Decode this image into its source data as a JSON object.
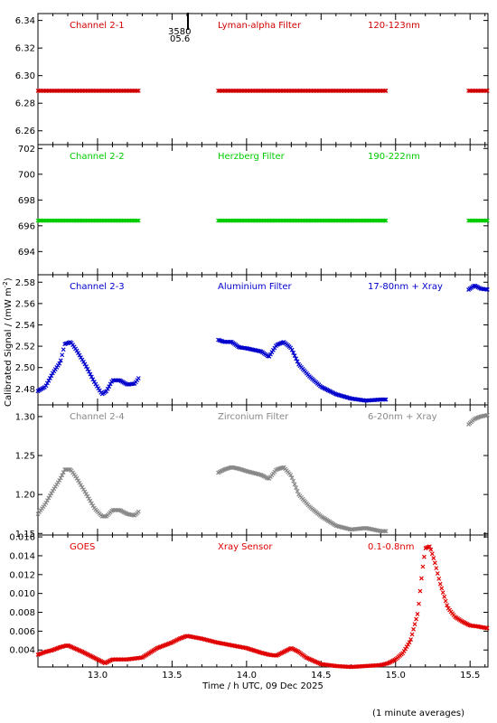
{
  "ylabel": "Calibrated Signal / (mW m",
  "ylabel_sup": "-2",
  "ylabel_close": ")",
  "xlabel": "Time / h UTC, 09 Dec 2025",
  "footnote": "(1 minute averages)",
  "marker_text_1": "3580",
  "marker_text_2": "05.6",
  "chart_data": [
    {
      "type": "scatter",
      "labels": [
        "Channel 2-1",
        "Lyman-alpha Filter",
        "120-123nm"
      ],
      "color": "#d00000",
      "ylim": [
        6.25,
        6.345
      ],
      "yticks": [
        6.26,
        6.28,
        6.3,
        6.32,
        6.34
      ],
      "ytick_labels": [
        "6.26",
        "6.28",
        "6.30",
        "6.32",
        "6.34"
      ],
      "segments": [
        {
          "x": [
            12.6,
            13.28
          ],
          "y": [
            6.289,
            6.289
          ]
        },
        {
          "x": [
            13.81,
            14.94
          ],
          "y": [
            6.289,
            6.289
          ]
        },
        {
          "x": [
            15.49,
            15.62
          ],
          "y": [
            6.289,
            6.289
          ]
        }
      ]
    },
    {
      "type": "scatter",
      "labels": [
        "Channel 2-2",
        "Herzberg Filter",
        "190-222nm"
      ],
      "color": "#00cc00",
      "ylim": [
        692.2,
        702.3
      ],
      "yticks": [
        694,
        696,
        698,
        700,
        702
      ],
      "ytick_labels": [
        "694",
        "696",
        "698",
        "700",
        "702"
      ],
      "segments": [
        {
          "x": [
            12.6,
            13.28
          ],
          "y": [
            696.4,
            696.4
          ]
        },
        {
          "x": [
            13.81,
            14.94
          ],
          "y": [
            696.4,
            696.4
          ]
        },
        {
          "x": [
            15.49,
            15.62
          ],
          "y": [
            696.4,
            696.4
          ]
        }
      ]
    },
    {
      "type": "scatter",
      "labels": [
        "Channel 2-3",
        "Aluminium Filter",
        "17-80nm + Xray"
      ],
      "color": "#0000cc",
      "ylim": [
        2.465,
        2.587
      ],
      "yticks": [
        2.48,
        2.5,
        2.52,
        2.54,
        2.56,
        2.58
      ],
      "ytick_labels": [
        "2.48",
        "2.50",
        "2.52",
        "2.54",
        "2.56",
        "2.58"
      ],
      "segments": [
        {
          "x": [
            12.6,
            12.65,
            12.7,
            12.75,
            12.78,
            12.82,
            12.86,
            12.92,
            12.98,
            13.03,
            13.06,
            13.1,
            13.15,
            13.2,
            13.25,
            13.28
          ],
          "y": [
            2.478,
            2.482,
            2.495,
            2.505,
            2.522,
            2.524,
            2.516,
            2.502,
            2.486,
            2.475,
            2.478,
            2.488,
            2.488,
            2.484,
            2.485,
            2.491
          ]
        },
        {
          "x": [
            13.81,
            13.85,
            13.9,
            13.95,
            14.0,
            14.1,
            14.15,
            14.2,
            14.25,
            14.3,
            14.35,
            14.42,
            14.5,
            14.6,
            14.7,
            14.8,
            14.9,
            14.94
          ],
          "y": [
            2.526,
            2.524,
            2.524,
            2.519,
            2.518,
            2.515,
            2.51,
            2.521,
            2.524,
            2.518,
            2.503,
            2.492,
            2.482,
            2.475,
            2.471,
            2.469,
            2.47,
            2.47
          ]
        },
        {
          "x": [
            15.49,
            15.53,
            15.57,
            15.62
          ],
          "y": [
            2.573,
            2.577,
            2.574,
            2.573
          ]
        }
      ]
    },
    {
      "type": "scatter",
      "labels": [
        "Channel 2-4",
        "Zirconium Filter",
        "6-20nm + Xray"
      ],
      "color": "#888888",
      "ylim": [
        1.148,
        1.315
      ],
      "yticks": [
        1.15,
        1.2,
        1.25,
        1.3
      ],
      "ytick_labels": [
        "1.15",
        "1.20",
        "1.25",
        "1.30"
      ],
      "segments": [
        {
          "x": [
            12.6,
            12.65,
            12.7,
            12.75,
            12.78,
            12.82,
            12.86,
            12.92,
            12.98,
            13.03,
            13.06,
            13.1,
            13.15,
            13.2,
            13.25,
            13.28
          ],
          "y": [
            1.175,
            1.188,
            1.205,
            1.22,
            1.232,
            1.232,
            1.221,
            1.202,
            1.182,
            1.172,
            1.172,
            1.18,
            1.18,
            1.175,
            1.173,
            1.179
          ]
        },
        {
          "x": [
            13.81,
            13.85,
            13.9,
            13.95,
            14.0,
            14.1,
            14.15,
            14.2,
            14.25,
            14.3,
            14.35,
            14.42,
            14.5,
            14.6,
            14.7,
            14.8,
            14.9,
            14.94
          ],
          "y": [
            1.228,
            1.232,
            1.235,
            1.233,
            1.23,
            1.225,
            1.22,
            1.232,
            1.235,
            1.224,
            1.2,
            1.185,
            1.172,
            1.16,
            1.155,
            1.157,
            1.153,
            1.153
          ]
        },
        {
          "x": [
            15.49,
            15.53,
            15.57,
            15.62
          ],
          "y": [
            1.29,
            1.297,
            1.3,
            1.302
          ]
        }
      ]
    },
    {
      "type": "scatter",
      "labels": [
        "GOES",
        "Xray Sensor",
        "0.1-0.8nm"
      ],
      "color": "#e00000",
      "ylim": [
        0.0022,
        0.0162
      ],
      "yticks": [
        0.004,
        0.006,
        0.008,
        0.01,
        0.012,
        0.014,
        0.016
      ],
      "ytick_labels": [
        "0.004",
        "0.006",
        "0.008",
        "0.010",
        "0.012",
        "0.014",
        "0.016"
      ],
      "segments": [
        {
          "x": [
            12.6,
            12.65,
            12.7,
            12.75,
            12.8,
            12.9,
            13.0,
            13.05,
            13.1,
            13.2,
            13.3,
            13.4,
            13.5,
            13.55,
            13.6,
            13.7,
            13.8,
            13.9,
            14.0,
            14.1,
            14.15,
            14.2,
            14.25,
            14.3,
            14.35,
            14.4,
            14.5,
            14.6,
            14.7,
            14.8,
            14.9,
            14.95,
            15.0,
            15.05,
            15.1,
            15.15,
            15.18,
            15.2,
            15.23,
            15.26,
            15.3,
            15.35,
            15.4,
            15.45,
            15.5,
            15.55,
            15.62
          ],
          "y": [
            0.0035,
            0.0038,
            0.004,
            0.0043,
            0.0045,
            0.0038,
            0.003,
            0.0026,
            0.003,
            0.003,
            0.0032,
            0.0042,
            0.0048,
            0.0052,
            0.0055,
            0.0052,
            0.0048,
            0.0045,
            0.0042,
            0.0037,
            0.0035,
            0.0034,
            0.0038,
            0.0042,
            0.0038,
            0.0032,
            0.0025,
            0.0023,
            0.0022,
            0.0023,
            0.0024,
            0.0026,
            0.003,
            0.0037,
            0.005,
            0.008,
            0.0125,
            0.0148,
            0.015,
            0.0135,
            0.011,
            0.0085,
            0.0075,
            0.007,
            0.0066,
            0.0065,
            0.0063
          ]
        }
      ]
    }
  ],
  "xaxis": {
    "xlim": [
      12.6,
      15.62
    ],
    "ticks": [
      13.0,
      13.5,
      14.0,
      14.5,
      15.0,
      15.5
    ],
    "tick_labels": [
      "13.0",
      "13.5",
      "14.0",
      "14.5",
      "15.0",
      "15.5"
    ]
  }
}
